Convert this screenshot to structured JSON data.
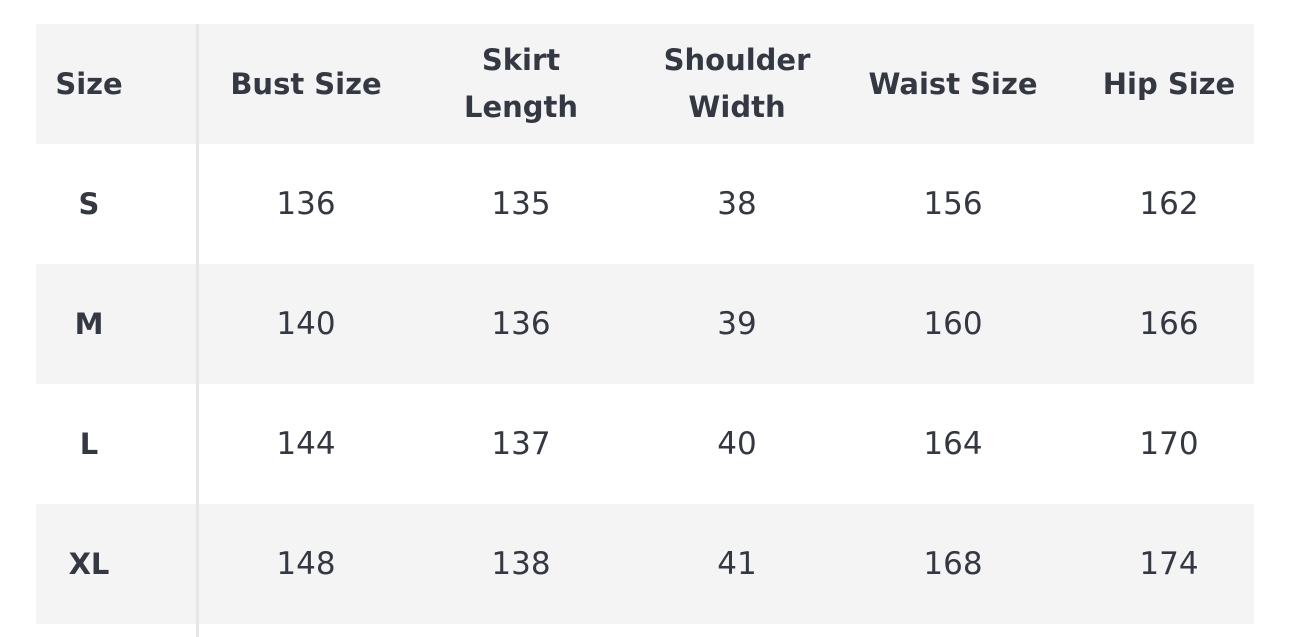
{
  "table": {
    "header": [
      "Size",
      "Bust Size",
      "Skirt Length",
      "Shoulder Width",
      "Waist Size",
      "Hip Size"
    ],
    "rows": [
      [
        "S",
        136,
        135,
        38,
        156,
        162
      ],
      [
        "M",
        140,
        136,
        39,
        160,
        166
      ],
      [
        "L",
        144,
        137,
        40,
        164,
        170
      ],
      [
        "XL",
        148,
        138,
        41,
        168,
        174
      ]
    ]
  }
}
